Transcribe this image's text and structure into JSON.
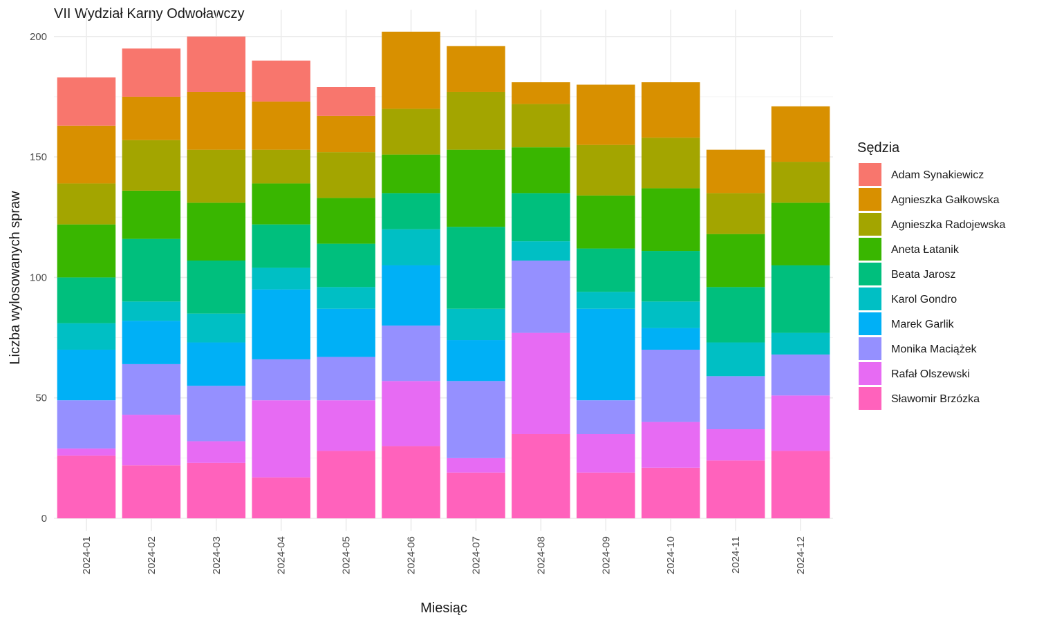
{
  "chart_data": {
    "type": "bar",
    "stacked": true,
    "title": "VII Wydział Karny Odwoławczy",
    "xlabel": "Miesiąc",
    "ylabel": "Liczba wylosowanych spraw",
    "ylim": [
      0,
      210
    ],
    "y_ticks": [
      0,
      50,
      100,
      150,
      200
    ],
    "grid": true,
    "legend_title": "Sędzia",
    "legend_position": "right",
    "categories": [
      "2024-01",
      "2024-02",
      "2024-03",
      "2024-04",
      "2024-05",
      "2024-06",
      "2024-07",
      "2024-08",
      "2024-09",
      "2024-10",
      "2024-11",
      "2024-12"
    ],
    "series": [
      {
        "name": "Adam Synakiewicz",
        "color": "#F8766D",
        "values": [
          20,
          20,
          23,
          17,
          12,
          0,
          0,
          0,
          0,
          0,
          0,
          0
        ]
      },
      {
        "name": "Agnieszka Gałkowska",
        "color": "#D89000",
        "values": [
          24,
          18,
          24,
          20,
          15,
          32,
          19,
          9,
          25,
          23,
          18,
          23
        ]
      },
      {
        "name": "Agnieszka Radojewska",
        "color": "#A3A500",
        "values": [
          17,
          21,
          22,
          14,
          19,
          19,
          24,
          18,
          21,
          21,
          17,
          17
        ]
      },
      {
        "name": "Aneta Łatanik",
        "color": "#39B600",
        "values": [
          22,
          20,
          24,
          17,
          19,
          16,
          32,
          19,
          22,
          26,
          22,
          26
        ]
      },
      {
        "name": "Beata Jarosz",
        "color": "#00BF7D",
        "values": [
          19,
          26,
          22,
          18,
          18,
          15,
          34,
          20,
          18,
          21,
          23,
          28
        ]
      },
      {
        "name": "Karol Gondro",
        "color": "#00BFC4",
        "values": [
          11,
          8,
          12,
          9,
          9,
          15,
          13,
          8,
          7,
          11,
          14,
          9
        ]
      },
      {
        "name": "Marek Garlik",
        "color": "#00B0F6",
        "values": [
          21,
          18,
          18,
          29,
          20,
          25,
          17,
          0,
          38,
          9,
          0,
          0
        ]
      },
      {
        "name": "Monika Maciążek",
        "color": "#9590FF",
        "values": [
          20,
          21,
          23,
          17,
          18,
          23,
          32,
          30,
          14,
          30,
          22,
          17
        ]
      },
      {
        "name": "Rafał Olszewski",
        "color": "#E76BF3",
        "values": [
          3,
          21,
          9,
          32,
          21,
          27,
          6,
          42,
          16,
          19,
          13,
          23
        ]
      },
      {
        "name": "Sławomir Brzózka",
        "color": "#FF62BC",
        "values": [
          26,
          22,
          23,
          17,
          28,
          30,
          19,
          35,
          19,
          21,
          24,
          28
        ]
      }
    ]
  }
}
